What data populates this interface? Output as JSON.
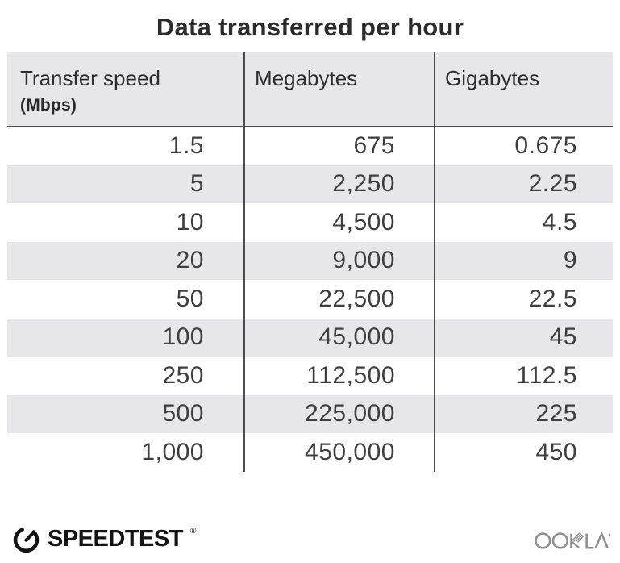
{
  "chart_data": {
    "type": "table",
    "title": "Data transferred per hour",
    "columns": [
      "Transfer speed (Mbps)",
      "Megabytes",
      "Gigabytes"
    ],
    "rows": [
      [
        "1.5",
        "675",
        "0.675"
      ],
      [
        "5",
        "2,250",
        "2.25"
      ],
      [
        "10",
        "4,500",
        "4.5"
      ],
      [
        "20",
        "9,000",
        "9"
      ],
      [
        "50",
        "22,500",
        "22.5"
      ],
      [
        "100",
        "45,000",
        "45"
      ],
      [
        "250",
        "112,500",
        "112.5"
      ],
      [
        "500",
        "225,000",
        "225"
      ],
      [
        "1,000",
        "450,000",
        "450"
      ]
    ],
    "layout": {
      "striped_rows": true,
      "stripe_color": "#e7e7eb",
      "header_bg": "#e7e7eb",
      "divider_color": "#4d4d4f"
    }
  },
  "header": {
    "col1_label": "Transfer speed",
    "col1_sublabel": "(Mbps)",
    "col2_label": "Megabytes",
    "col3_label": "Gigabytes"
  },
  "footer": {
    "speedtest_label": "SPEEDTEST",
    "speedtest_trademark": "®",
    "ookla_label": "OOKLA"
  },
  "colors": {
    "title_text": "#2b2b2d",
    "body_text": "#3f3f41",
    "header_bg": "#e7e7eb",
    "stripe_bg": "#e7e7eb",
    "divider": "#4d4d4f",
    "speedtest_black": "#141414",
    "ookla_gray": "#8e8e91"
  }
}
